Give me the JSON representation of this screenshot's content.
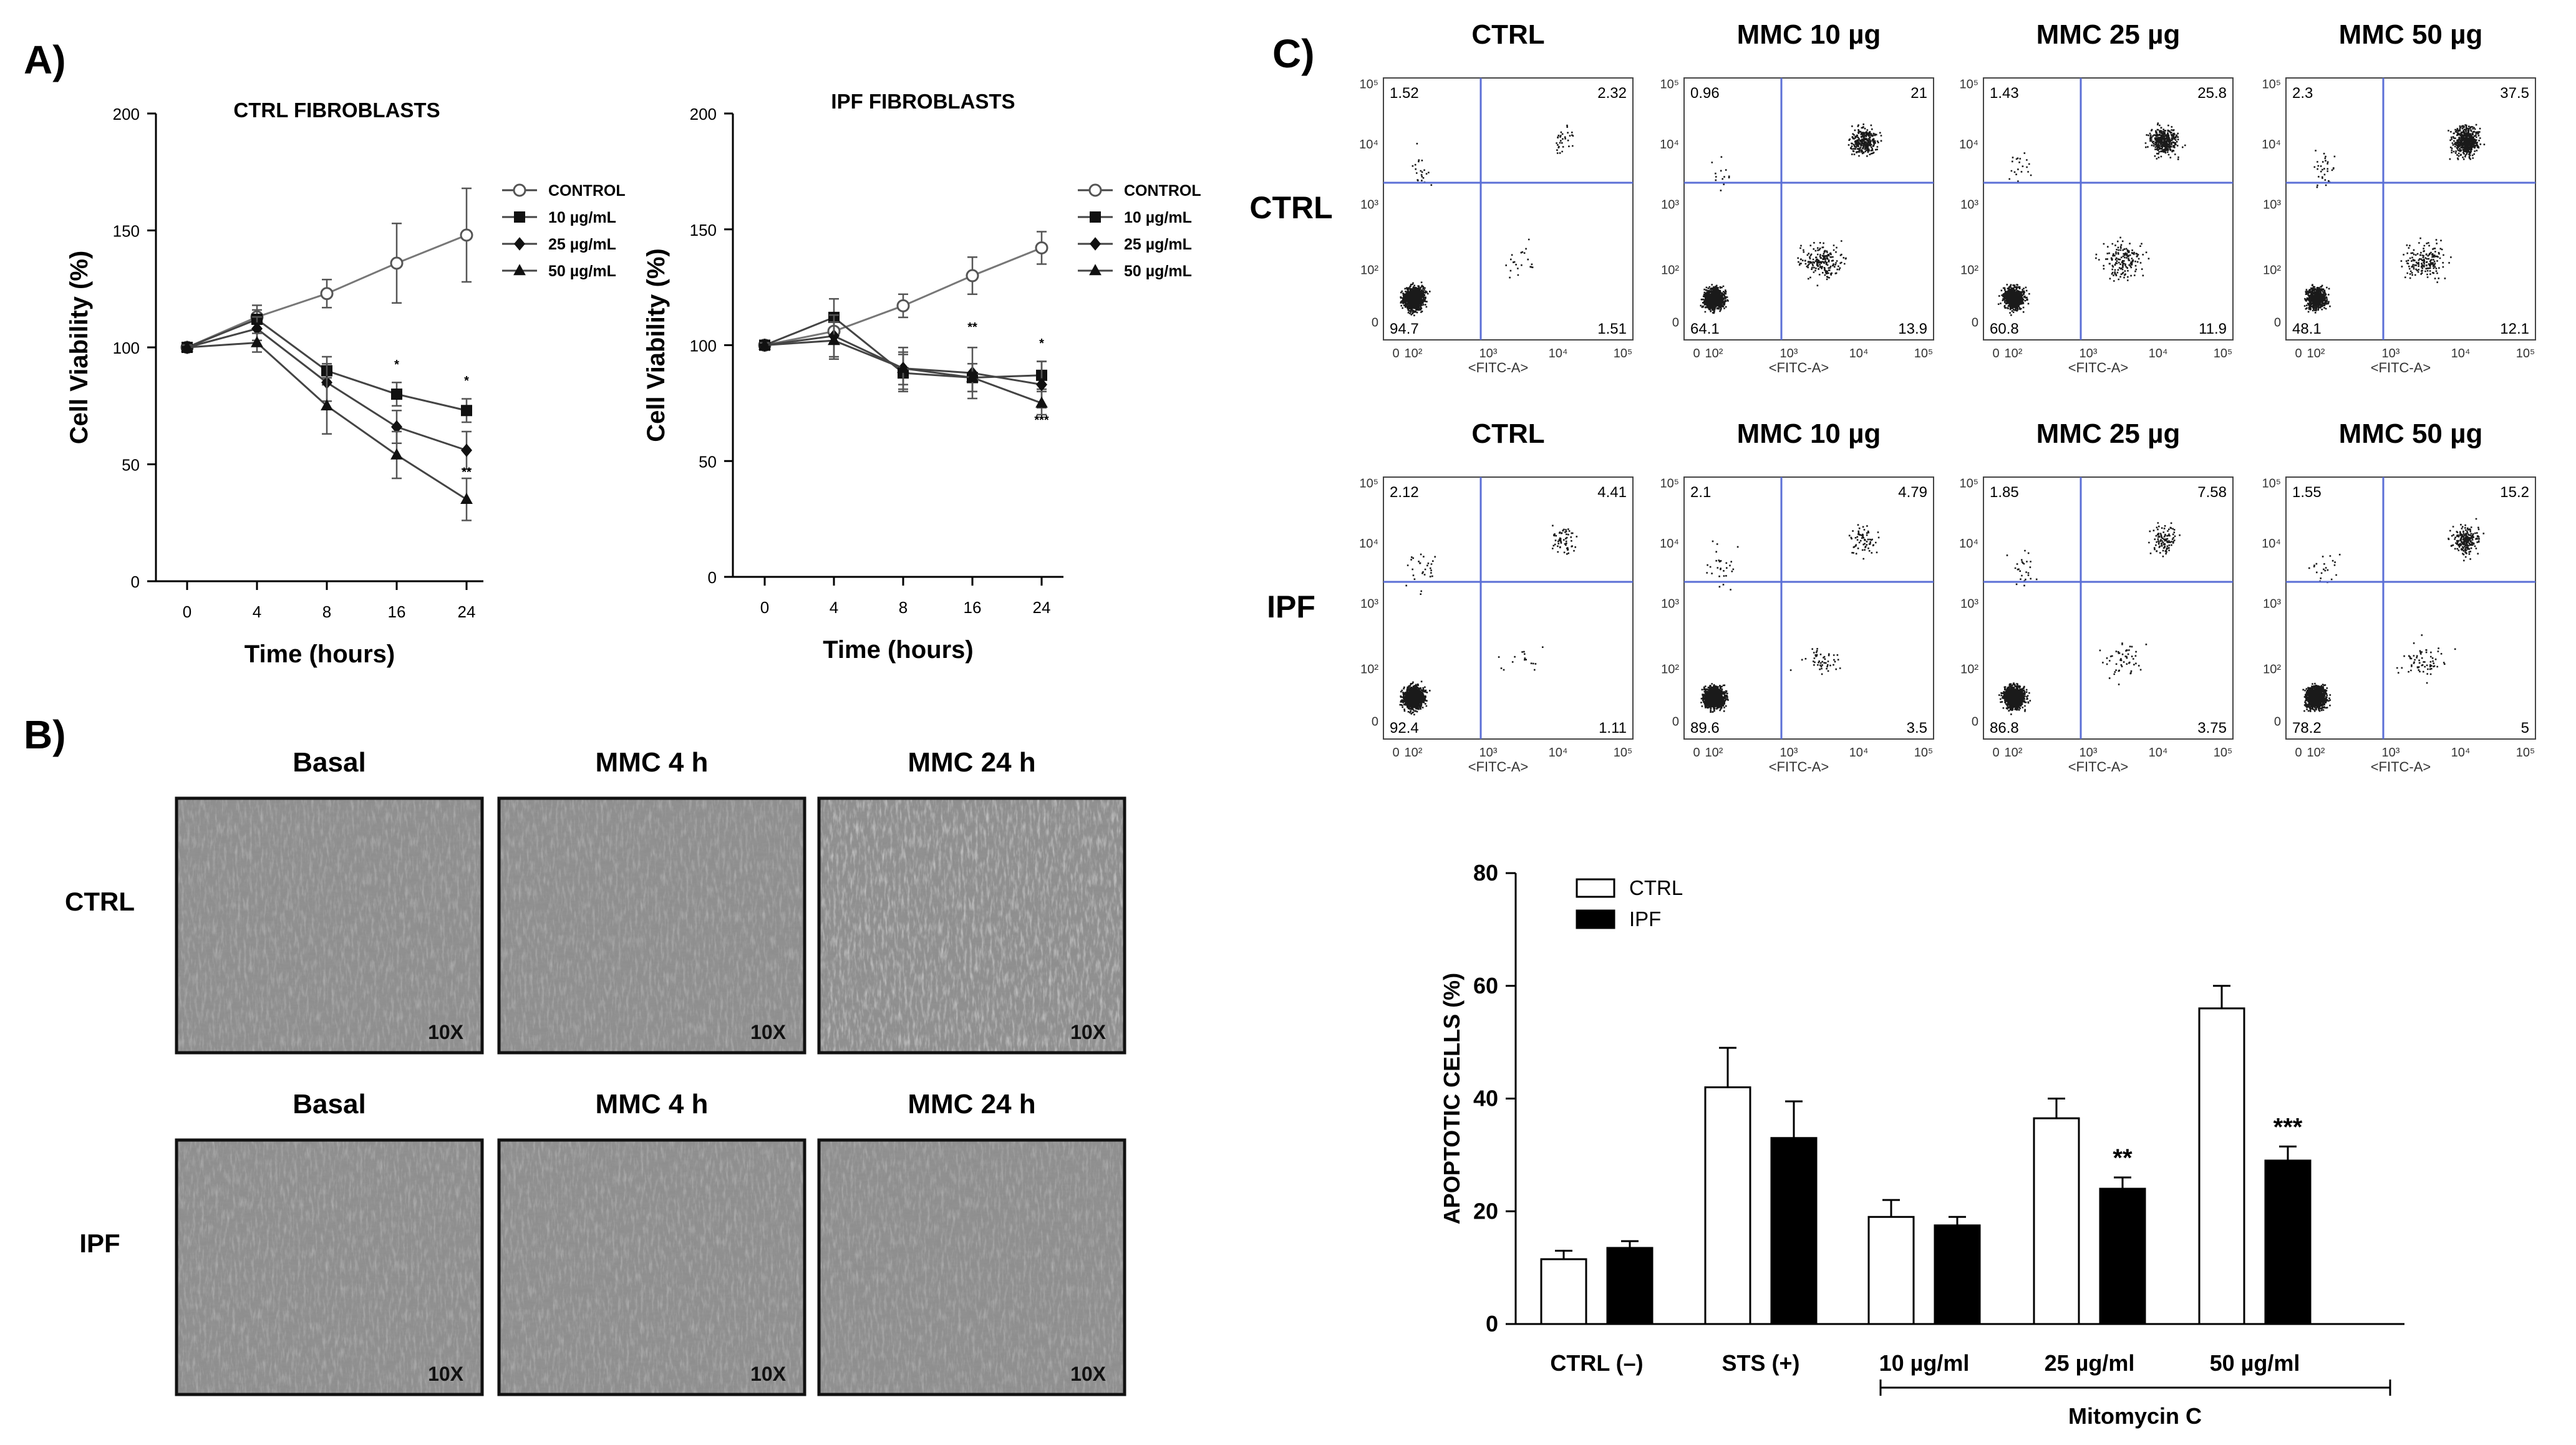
{
  "panels": {
    "a": "A)",
    "b": "B)",
    "c": "C)"
  },
  "colors": {
    "quadrant": "#5b6fd6",
    "dots": "#1a1a1a",
    "bar_ctrl": "#ffffff",
    "bar_ipf": "#000000",
    "micrograph": "#8e8e8e"
  },
  "flow_axis": {
    "y_ticks": [
      "10⁵",
      "10⁴",
      "10³",
      "10²",
      "0"
    ],
    "x_ticks": [
      "0",
      "10²",
      "10³",
      "10⁴",
      "10⁵"
    ],
    "x_label": "<FITC-A>"
  },
  "microscopy": {
    "columns": [
      "Basal",
      "MMC 4 h",
      "MMC 24 h"
    ],
    "rows": [
      "CTRL",
      "IPF"
    ],
    "magnification": "10X"
  },
  "chart_data": [
    {
      "id": "ctrl-viability",
      "type": "line",
      "title": "CTRL FIBROBLASTS",
      "xlabel": "Time (hours)",
      "ylabel": "Cell Viability (%)",
      "categories": [
        "0",
        "4",
        "8",
        "16",
        "24"
      ],
      "ylim": [
        0,
        200
      ],
      "yticks": [
        "0",
        "50",
        "100",
        "150",
        "200"
      ],
      "legend_position": "top-right",
      "series": [
        {
          "name": "CONTROL",
          "marker": "open-circle",
          "values": [
            100,
            113,
            123,
            136,
            148
          ],
          "errors": [
            1,
            5,
            6,
            17,
            20
          ]
        },
        {
          "name": "10 µg/mL",
          "marker": "square",
          "values": [
            100,
            112,
            90,
            80,
            73
          ],
          "errors": [
            1,
            4,
            6,
            5,
            5
          ]
        },
        {
          "name": "25 µg/mL",
          "marker": "diamond",
          "values": [
            100,
            108,
            85,
            66,
            56
          ],
          "errors": [
            1,
            5,
            8,
            7,
            8
          ]
        },
        {
          "name": "50 µg/mL",
          "marker": "triangle",
          "values": [
            100,
            102,
            75,
            54,
            35
          ],
          "errors": [
            1,
            4,
            12,
            10,
            9
          ]
        }
      ],
      "annotations": [
        {
          "x": "16",
          "y": 91,
          "text": "*"
        },
        {
          "x": "24",
          "y": 84,
          "text": "*"
        },
        {
          "x": "24",
          "y": 45,
          "text": "**"
        }
      ]
    },
    {
      "id": "ipf-viability",
      "type": "line",
      "title": "IPF FIBROBLASTS",
      "xlabel": "Time (hours)",
      "ylabel": "Cell Viability (%)",
      "categories": [
        "0",
        "4",
        "8",
        "16",
        "24"
      ],
      "ylim": [
        0,
        200
      ],
      "yticks": [
        "0",
        "50",
        "100",
        "150",
        "200"
      ],
      "legend_position": "top-right",
      "series": [
        {
          "name": "CONTROL",
          "marker": "open-circle",
          "values": [
            100,
            106,
            117,
            130,
            142
          ],
          "errors": [
            1,
            5,
            5,
            8,
            7
          ]
        },
        {
          "name": "10 µg/mL",
          "marker": "square",
          "values": [
            100,
            112,
            88,
            86,
            87
          ],
          "errors": [
            1,
            8,
            8,
            6,
            6
          ]
        },
        {
          "name": "25 µg/mL",
          "marker": "diamond",
          "values": [
            100,
            104,
            90,
            88,
            83
          ],
          "errors": [
            1,
            9,
            7,
            11,
            10
          ]
        },
        {
          "name": "50 µg/mL",
          "marker": "triangle",
          "values": [
            100,
            102,
            90,
            86,
            75
          ],
          "errors": [
            1,
            8,
            9,
            6,
            5
          ]
        }
      ],
      "annotations": [
        {
          "x": "16",
          "y": 106,
          "text": "**"
        },
        {
          "x": "24",
          "y": 99,
          "text": "*"
        },
        {
          "x": "24",
          "y": 66,
          "text": "***"
        }
      ]
    },
    {
      "id": "flow-cytometry",
      "type": "scatter",
      "xlabel": "<FITC-A>",
      "columns": [
        "CTRL",
        "MMC 10 µg",
        "MMC 25 µg",
        "MMC 50 µg"
      ],
      "rows": [
        {
          "label": "CTRL",
          "plots": [
            {
              "tl": "1.52",
              "tr": "2.32",
              "bl": "94.7",
              "br": "1.51"
            },
            {
              "tl": "0.96",
              "tr": "21",
              "bl": "64.1",
              "br": "13.9"
            },
            {
              "tl": "1.43",
              "tr": "25.8",
              "bl": "60.8",
              "br": "11.9"
            },
            {
              "tl": "2.3",
              "tr": "37.5",
              "bl": "48.1",
              "br": "12.1"
            }
          ]
        },
        {
          "label": "IPF",
          "plots": [
            {
              "tl": "2.12",
              "tr": "4.41",
              "bl": "92.4",
              "br": "1.11"
            },
            {
              "tl": "2.1",
              "tr": "4.79",
              "bl": "89.6",
              "br": "3.5"
            },
            {
              "tl": "1.85",
              "tr": "7.58",
              "bl": "86.8",
              "br": "3.75"
            },
            {
              "tl": "1.55",
              "tr": "15.2",
              "bl": "78.2",
              "br": "5"
            }
          ]
        }
      ]
    },
    {
      "id": "apoptosis-bar",
      "type": "bar",
      "ylabel": "APOPTOTIC CELLS (%)",
      "ylim": [
        0,
        80
      ],
      "yticks": [
        "0",
        "20",
        "40",
        "60",
        "80"
      ],
      "categories": [
        "CTRL (–)",
        "STS (+)",
        "10 µg/ml",
        "25 µg/ml",
        "50 µg/ml"
      ],
      "group_label": "Mitomycin C",
      "legend_position": "top-left",
      "series": [
        {
          "name": "CTRL",
          "values": [
            11.5,
            42,
            19,
            36.5,
            56
          ],
          "errors": [
            1.5,
            7,
            3,
            3.5,
            4
          ]
        },
        {
          "name": "IPF",
          "values": [
            13.5,
            33,
            17.5,
            24,
            29
          ],
          "errors": [
            1.2,
            6.5,
            1.5,
            2,
            2.5
          ]
        }
      ],
      "annotations": [
        {
          "category": "25 µg/ml",
          "series": "IPF",
          "text": "**"
        },
        {
          "category": "50 µg/ml",
          "series": "IPF",
          "text": "***"
        }
      ]
    }
  ]
}
